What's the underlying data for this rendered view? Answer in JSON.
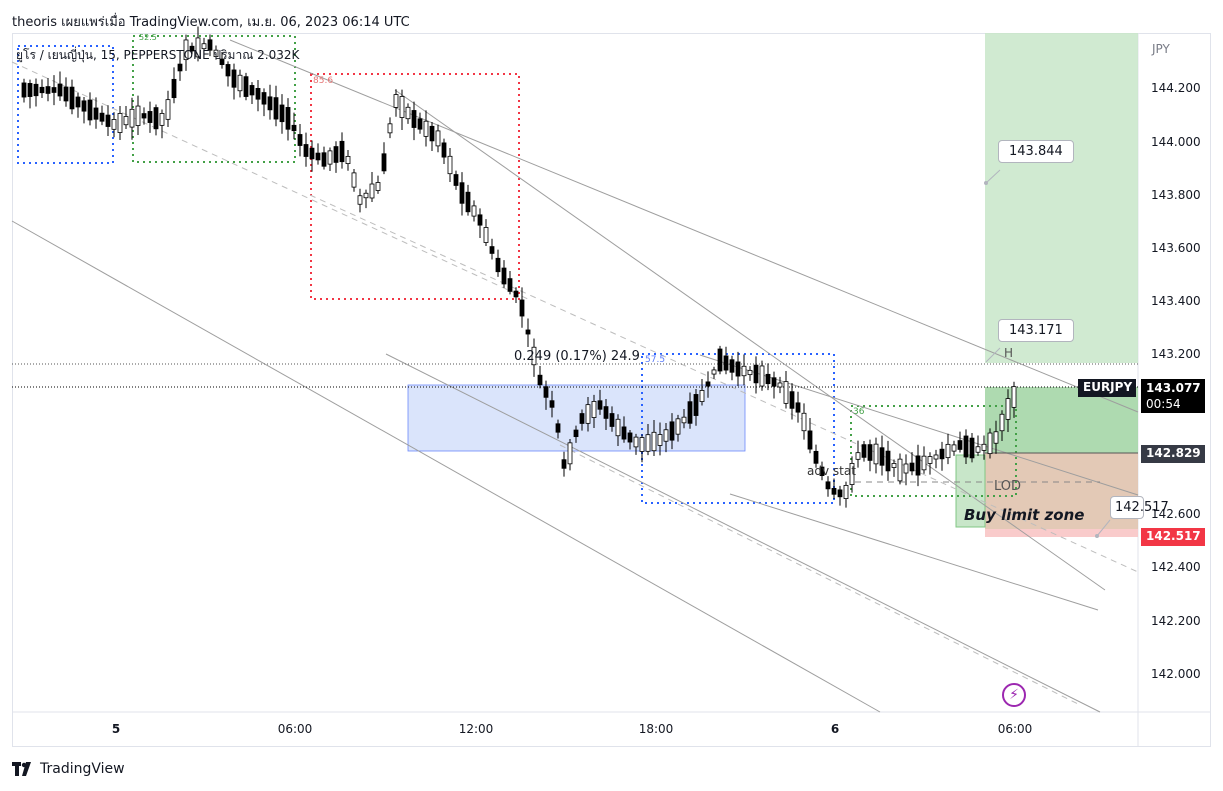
{
  "header": {
    "publisher_line": "theoris เผยแพร่เมื่อ TradingView.com, เม.ย. 06, 2023 06:14 UTC"
  },
  "symbol_line": {
    "text": "ยูโร / เยนญี่ปุ่น, 15, PEPPERSTONE  ปริมาณ  2.032K"
  },
  "price_axis": {
    "currency": "JPY",
    "ticks": [
      "144.200",
      "144.000",
      "143.800",
      "143.600",
      "143.400",
      "143.200",
      "142.600",
      "142.400",
      "142.200",
      "142.000"
    ]
  },
  "time_axis": {
    "ticks": [
      "5",
      "06:00",
      "12:00",
      "18:00",
      "6",
      "06:00"
    ]
  },
  "price_tags": {
    "symbol": "EURJPY",
    "last_price": "143.077",
    "countdown": "00:54",
    "level_1": "142.829",
    "level_2": "142.517"
  },
  "callouts": {
    "target": "143.844",
    "entry": "143.171",
    "stop": "142.517"
  },
  "labels": {
    "buy_limit_zone": "Buy limit zone",
    "lod": "LOD",
    "h": "H",
    "measure": "0.249 (0.17%) 24.9",
    "adv_stat": "adv stat",
    "box_1": "85.6",
    "box_2": "57.5",
    "box_3": "36",
    "box_4": "52.5"
  },
  "footer": {
    "brand": "TradingView"
  },
  "icons": {
    "lightning": "lightning-icon",
    "logo": "tradingview-logo-icon"
  },
  "colors": {
    "candle_up": "#ffffff",
    "candle_down": "#000000",
    "target_zone": "#c8e6c9",
    "stop_zone": "#e8c7b4",
    "stop_price": "#f23645",
    "blue_zone": "#d6e2fb"
  }
}
